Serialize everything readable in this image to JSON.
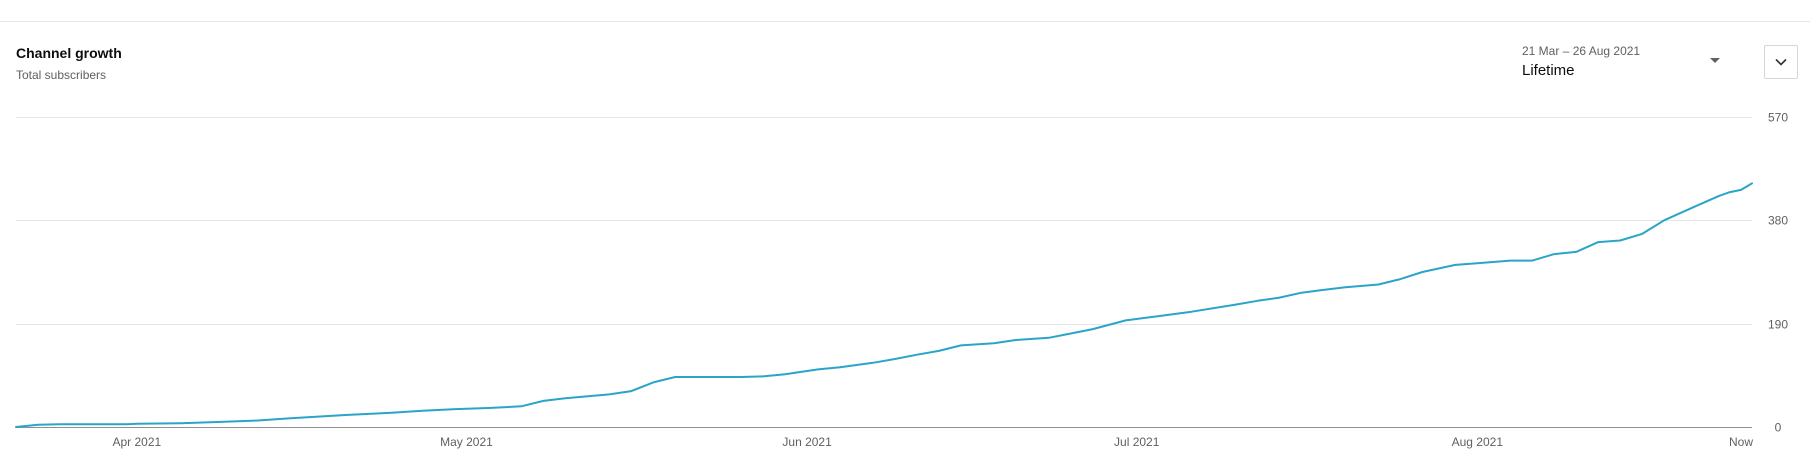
{
  "card": {
    "title": "Channel growth",
    "subtitle": "Total subscribers"
  },
  "date_picker": {
    "range": "21 Mar – 26 Aug 2021",
    "value": "Lifetime",
    "icon": "arrow-drop-down-icon"
  },
  "expand_button": {
    "icon": "chevron-down-icon"
  },
  "colors": {
    "line": "#2aa4c9",
    "grid": "#e5e5e5",
    "baseline": "#909090",
    "tick_text": "#606060"
  },
  "chart_data": {
    "type": "line",
    "title": "Channel growth",
    "subtitle": "Total subscribers",
    "xlabel": "",
    "ylabel": "",
    "x_range": [
      "2021-03-21",
      "2021-08-26"
    ],
    "ylim": [
      0,
      570
    ],
    "y_ticks": [
      0,
      190,
      380,
      570
    ],
    "y_tick_labels": [
      "0",
      "190",
      "380",
      "570"
    ],
    "y_axis_position": "right",
    "x_ticks": [
      {
        "date": "2021-04-01",
        "label": "Apr 2021"
      },
      {
        "date": "2021-05-01",
        "label": "May 2021"
      },
      {
        "date": "2021-06-01",
        "label": "Jun 2021"
      },
      {
        "date": "2021-07-01",
        "label": "Jul 2021"
      },
      {
        "date": "2021-08-01",
        "label": "Aug 2021"
      },
      {
        "date": "2021-08-26",
        "label": "Now"
      }
    ],
    "grid": true,
    "legend": "none",
    "series": [
      {
        "x": [
          "2021-03-21",
          "2021-03-23",
          "2021-03-25",
          "2021-03-31",
          "2021-04-01",
          "2021-04-05",
          "2021-04-08",
          "2021-04-12",
          "2021-04-15",
          "2021-04-20",
          "2021-04-24",
          "2021-04-27",
          "2021-04-30",
          "2021-05-03",
          "2021-05-06",
          "2021-05-08",
          "2021-05-10",
          "2021-05-14",
          "2021-05-16",
          "2021-05-18",
          "2021-05-20",
          "2021-05-26",
          "2021-05-28",
          "2021-05-30",
          "2021-06-02",
          "2021-06-04",
          "2021-06-07",
          "2021-06-09",
          "2021-06-11",
          "2021-06-13",
          "2021-06-15",
          "2021-06-18",
          "2021-06-20",
          "2021-06-23",
          "2021-06-25",
          "2021-06-27",
          "2021-06-30",
          "2021-07-03",
          "2021-07-06",
          "2021-07-10",
          "2021-07-12",
          "2021-07-14",
          "2021-07-16",
          "2021-07-18",
          "2021-07-20",
          "2021-07-23",
          "2021-07-25",
          "2021-07-27",
          "2021-07-30",
          "2021-08-01",
          "2021-08-04",
          "2021-08-06",
          "2021-08-08",
          "2021-08-10",
          "2021-08-12",
          "2021-08-14",
          "2021-08-16",
          "2021-08-18",
          "2021-08-21",
          "2021-08-23",
          "2021-08-24",
          "2021-08-25",
          "2021-08-26"
        ],
        "values": [
          0,
          4,
          5,
          5,
          6,
          7,
          9,
          12,
          16,
          22,
          26,
          30,
          33,
          35,
          38,
          48,
          53,
          60,
          66,
          82,
          92,
          92,
          93,
          97,
          106,
          110,
          118,
          125,
          133,
          140,
          150,
          154,
          160,
          164,
          172,
          180,
          196,
          204,
          212,
          225,
          232,
          238,
          247,
          252,
          257,
          262,
          272,
          285,
          298,
          301,
          306,
          306,
          318,
          322,
          340,
          343,
          355,
          380,
          407,
          425,
          432,
          436,
          448
        ]
      }
    ]
  }
}
